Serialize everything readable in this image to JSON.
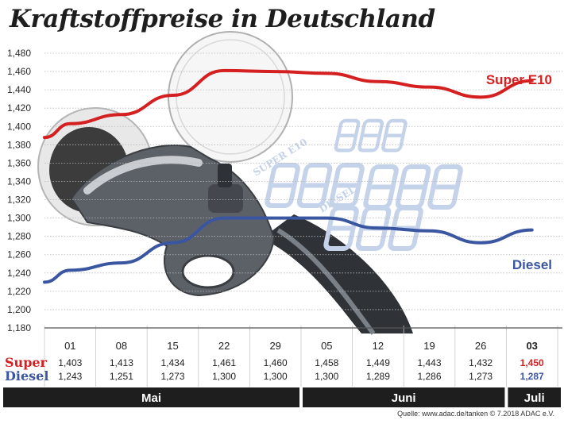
{
  "title": "Kraftstoffpreise in Deutschland",
  "source": "Quelle: www.adac.de/tanken  © 7.2018  ADAC e.V.",
  "colors": {
    "super": "#d42020",
    "diesel": "#3a56a0",
    "grid": "#b8b8b8",
    "bar": "#1e1e1e",
    "digits": "#c4d2ea"
  },
  "chart_data": {
    "type": "line",
    "title": "Kraftstoffpreise in Deutschland",
    "ylim": [
      1.18,
      1.48
    ],
    "y_ticks": [
      "1,480",
      "1,460",
      "1,440",
      "1,420",
      "1,400",
      "1,380",
      "1,360",
      "1,340",
      "1,320",
      "1,300",
      "1,280",
      "1,260",
      "1,240",
      "1,220",
      "1,200",
      "1,180"
    ],
    "x": [
      "01",
      "08",
      "15",
      "22",
      "29",
      "05",
      "12",
      "19",
      "26",
      "03"
    ],
    "series": [
      {
        "name": "Super E10",
        "row_label": "Super",
        "values": [
          1.403,
          1.413,
          1.434,
          1.461,
          1.46,
          1.458,
          1.449,
          1.443,
          1.432,
          1.45
        ],
        "labels": [
          "1,403",
          "1,413",
          "1,434",
          "1,461",
          "1,460",
          "1,458",
          "1,449",
          "1,443",
          "1,432",
          "1,450"
        ],
        "start_value": 1.388,
        "color": "#d42020"
      },
      {
        "name": "Diesel",
        "row_label": "Diesel",
        "values": [
          1.243,
          1.251,
          1.273,
          1.3,
          1.3,
          1.3,
          1.289,
          1.286,
          1.273,
          1.287
        ],
        "labels": [
          "1,243",
          "1,251",
          "1,273",
          "1,300",
          "1,300",
          "1,300",
          "1,289",
          "1,286",
          "1,273",
          "1,287"
        ],
        "start_value": 1.23,
        "color": "#3a56a0"
      }
    ],
    "months": [
      {
        "label": "Mai",
        "from": 0,
        "to": 4
      },
      {
        "label": "Juni",
        "from": 5,
        "to": 8
      },
      {
        "label": "Juli",
        "from": 9,
        "to": 9
      }
    ],
    "highlight_last": true,
    "grid": true,
    "background_image": "fuel-nozzle-and-digit-display",
    "background_labels": [
      "SUPER E10",
      "DIESEL"
    ],
    "background_digits": "888"
  }
}
